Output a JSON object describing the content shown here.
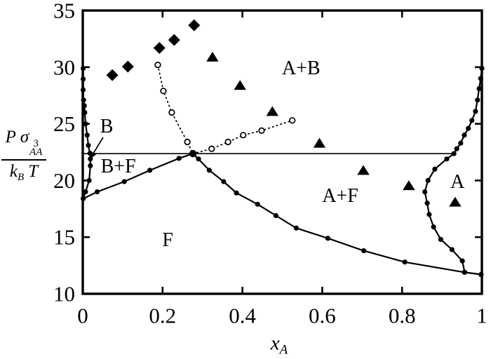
{
  "colors": {
    "ink": "#000000",
    "background": "#ffffff"
  },
  "chart_data": {
    "type": "scatter",
    "title": "",
    "xlabel": {
      "main": "x",
      "sub": "A"
    },
    "ylabel": {
      "num_main": "P σ",
      "num_sup": "3",
      "num_sub": "AA",
      "den_main": "k",
      "den_sub": "B",
      "den_tail": "T"
    },
    "xlim": [
      0,
      1
    ],
    "ylim": [
      10,
      35
    ],
    "grid": false,
    "frame": true,
    "xticks": {
      "values": [
        0,
        0.2,
        0.4,
        0.6,
        0.8,
        1
      ],
      "labels": [
        "0",
        "0.2",
        "0.4",
        "0.6",
        "0.8",
        "1"
      ],
      "tick_mark_values": [
        0.2,
        0.4,
        0.6,
        0.8
      ]
    },
    "yticks": {
      "values": [
        10,
        15,
        20,
        25,
        30,
        35
      ],
      "labels": [
        "10",
        "15",
        "20",
        "25",
        "30",
        "35"
      ],
      "tick_mark_values": [
        15,
        20,
        25,
        30
      ]
    },
    "series": [
      {
        "name": "tie-line",
        "marker": "none",
        "line": "solid-thin",
        "points": [
          [
            0.0,
            22.37
          ],
          [
            0.931,
            22.37
          ]
        ]
      },
      {
        "name": "solid-b-branch",
        "marker": "dot",
        "line": "solid",
        "points": [
          [
            0.001,
            29.9
          ],
          [
            0.001,
            28.95
          ],
          [
            0.001,
            28.0
          ],
          [
            0.002,
            27.1
          ],
          [
            0.004,
            26.6
          ],
          [
            0.005,
            26.0
          ],
          [
            0.007,
            25.0
          ],
          [
            0.011,
            24.0
          ],
          [
            0.014,
            23.1
          ],
          [
            0.018,
            22.4
          ],
          [
            0.019,
            21.9
          ],
          [
            0.019,
            21.3
          ],
          [
            0.016,
            20.0
          ],
          [
            0.007,
            19.0
          ],
          [
            0.001,
            18.4
          ]
        ]
      },
      {
        "name": "solid-f-boundary",
        "marker": "dot",
        "line": "solid",
        "points": [
          [
            0.001,
            18.4
          ],
          [
            0.036,
            19.0
          ],
          [
            0.104,
            19.9
          ],
          [
            0.168,
            20.9
          ],
          [
            0.241,
            21.95
          ],
          [
            0.276,
            22.37
          ],
          [
            0.29,
            21.9
          ],
          [
            0.317,
            20.9
          ],
          [
            0.353,
            19.9
          ],
          [
            0.385,
            18.9
          ],
          [
            0.438,
            17.9
          ],
          [
            0.484,
            16.9
          ],
          [
            0.535,
            15.8
          ],
          [
            0.614,
            14.9
          ],
          [
            0.704,
            13.8
          ],
          [
            0.807,
            12.8
          ],
          [
            0.956,
            11.9
          ],
          [
            0.998,
            11.7
          ]
        ]
      },
      {
        "name": "solid-a-branch",
        "marker": "dot",
        "line": "solid",
        "points": [
          [
            1.0,
            29.9
          ],
          [
            0.997,
            29.0
          ],
          [
            0.993,
            28.1
          ],
          [
            0.989,
            27.1
          ],
          [
            0.984,
            26.1
          ],
          [
            0.975,
            25.3
          ],
          [
            0.966,
            24.6
          ],
          [
            0.956,
            24.0
          ],
          [
            0.947,
            23.3
          ],
          [
            0.937,
            22.8
          ],
          [
            0.93,
            22.37
          ],
          [
            0.912,
            21.9
          ],
          [
            0.882,
            21.0
          ],
          [
            0.865,
            20.0
          ],
          [
            0.857,
            19.0
          ],
          [
            0.863,
            18.0
          ],
          [
            0.868,
            17.0
          ],
          [
            0.879,
            15.9
          ],
          [
            0.897,
            14.8
          ],
          [
            0.925,
            13.9
          ],
          [
            0.951,
            12.9
          ],
          [
            0.957,
            11.9
          ],
          [
            0.998,
            11.7
          ]
        ]
      },
      {
        "name": "dotted-left-branch",
        "marker": "open-circle",
        "line": "dotted",
        "points": [
          [
            0.188,
            30.2
          ],
          [
            0.202,
            27.9
          ],
          [
            0.223,
            26.0
          ],
          [
            0.262,
            23.4
          ],
          [
            0.276,
            22.37
          ]
        ]
      },
      {
        "name": "dotted-right-branch",
        "marker": "open-circle",
        "line": "dotted",
        "points": [
          [
            0.276,
            22.37
          ],
          [
            0.323,
            22.8
          ],
          [
            0.364,
            23.4
          ],
          [
            0.402,
            24.0
          ],
          [
            0.448,
            24.4
          ],
          [
            0.525,
            25.3
          ]
        ]
      },
      {
        "name": "triple-point",
        "marker": "dot-large",
        "line": "none",
        "points": [
          [
            0.276,
            22.37
          ]
        ]
      },
      {
        "name": "diamonds",
        "marker": "diamond",
        "line": "none",
        "points": [
          [
            0.074,
            29.3
          ],
          [
            0.113,
            30.05
          ],
          [
            0.192,
            31.7
          ],
          [
            0.229,
            32.4
          ],
          [
            0.279,
            33.7
          ]
        ]
      },
      {
        "name": "triangles",
        "marker": "triangle",
        "line": "none",
        "points": [
          [
            0.325,
            30.9
          ],
          [
            0.394,
            28.4
          ],
          [
            0.475,
            26.1
          ],
          [
            0.593,
            23.3
          ],
          [
            0.703,
            20.9
          ],
          [
            0.817,
            19.55
          ],
          [
            0.933,
            18.1
          ]
        ]
      }
    ],
    "regions": [
      {
        "label": "B",
        "x": 0.06,
        "y": 24.72
      },
      {
        "label": "B+F",
        "x": 0.089,
        "y": 21.2
      },
      {
        "label": "F",
        "x": 0.213,
        "y": 14.7
      },
      {
        "label": "A+B",
        "x": 0.547,
        "y": 29.85
      },
      {
        "label": "A+F",
        "x": 0.645,
        "y": 18.6
      },
      {
        "label": "A",
        "x": 0.939,
        "y": 19.85
      }
    ],
    "arrow": {
      "from": [
        0.051,
        23.8
      ],
      "to": [
        0.017,
        21.85
      ]
    }
  }
}
